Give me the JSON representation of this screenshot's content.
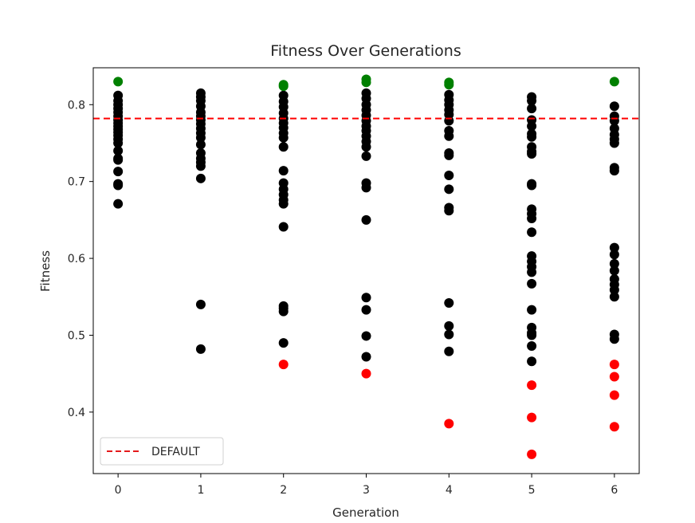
{
  "chart_data": {
    "type": "scatter",
    "title": "Fitness Over Generations",
    "xlabel": "Generation",
    "ylabel": "Fitness",
    "xlim": [
      -0.3,
      6.3
    ],
    "ylim": [
      0.32,
      0.848
    ],
    "xticks": [
      0,
      1,
      2,
      3,
      4,
      5,
      6
    ],
    "yticks": [
      0.4,
      0.5,
      0.6,
      0.7,
      0.8
    ],
    "grid": false,
    "legend": {
      "position": "bottom-left",
      "entries": [
        {
          "label": "DEFAULT",
          "style": "dashed-line",
          "color": "#e41a1c"
        }
      ]
    },
    "reference_line": {
      "name": "DEFAULT",
      "y": 0.782,
      "color": "#ff0000",
      "style": "dashed"
    },
    "colors": {
      "population": "#000000",
      "best": "#008000",
      "worst": "#ff0000"
    },
    "series": [
      {
        "name": "population",
        "color": "#000000",
        "points": [
          [
            0,
            0.812
          ],
          [
            0,
            0.805
          ],
          [
            0,
            0.8
          ],
          [
            0,
            0.795
          ],
          [
            0,
            0.79
          ],
          [
            0,
            0.785
          ],
          [
            0,
            0.78
          ],
          [
            0,
            0.776
          ],
          [
            0,
            0.772
          ],
          [
            0,
            0.768
          ],
          [
            0,
            0.764
          ],
          [
            0,
            0.76
          ],
          [
            0,
            0.755
          ],
          [
            0,
            0.75
          ],
          [
            0,
            0.74
          ],
          [
            0,
            0.73
          ],
          [
            0,
            0.728
          ],
          [
            0,
            0.713
          ],
          [
            0,
            0.697
          ],
          [
            0,
            0.695
          ],
          [
            0,
            0.671
          ],
          [
            1,
            0.815
          ],
          [
            1,
            0.81
          ],
          [
            1,
            0.805
          ],
          [
            1,
            0.798
          ],
          [
            1,
            0.79
          ],
          [
            1,
            0.785
          ],
          [
            1,
            0.78
          ],
          [
            1,
            0.775
          ],
          [
            1,
            0.769
          ],
          [
            1,
            0.763
          ],
          [
            1,
            0.757
          ],
          [
            1,
            0.748
          ],
          [
            1,
            0.737
          ],
          [
            1,
            0.73
          ],
          [
            1,
            0.725
          ],
          [
            1,
            0.72
          ],
          [
            1,
            0.704
          ],
          [
            1,
            0.54
          ],
          [
            1,
            0.482
          ],
          [
            2,
            0.812
          ],
          [
            2,
            0.804
          ],
          [
            2,
            0.797
          ],
          [
            2,
            0.789
          ],
          [
            2,
            0.782
          ],
          [
            2,
            0.776
          ],
          [
            2,
            0.77
          ],
          [
            2,
            0.763
          ],
          [
            2,
            0.757
          ],
          [
            2,
            0.745
          ],
          [
            2,
            0.714
          ],
          [
            2,
            0.698
          ],
          [
            2,
            0.69
          ],
          [
            2,
            0.683
          ],
          [
            2,
            0.676
          ],
          [
            2,
            0.671
          ],
          [
            2,
            0.641
          ],
          [
            2,
            0.538
          ],
          [
            2,
            0.535
          ],
          [
            2,
            0.531
          ],
          [
            2,
            0.49
          ],
          [
            3,
            0.815
          ],
          [
            3,
            0.808
          ],
          [
            3,
            0.8
          ],
          [
            3,
            0.793
          ],
          [
            3,
            0.786
          ],
          [
            3,
            0.779
          ],
          [
            3,
            0.772
          ],
          [
            3,
            0.766
          ],
          [
            3,
            0.759
          ],
          [
            3,
            0.752
          ],
          [
            3,
            0.745
          ],
          [
            3,
            0.733
          ],
          [
            3,
            0.698
          ],
          [
            3,
            0.692
          ],
          [
            3,
            0.65
          ],
          [
            3,
            0.549
          ],
          [
            3,
            0.533
          ],
          [
            3,
            0.499
          ],
          [
            3,
            0.472
          ],
          [
            4,
            0.813
          ],
          [
            4,
            0.806
          ],
          [
            4,
            0.8
          ],
          [
            4,
            0.793
          ],
          [
            4,
            0.787
          ],
          [
            4,
            0.779
          ],
          [
            4,
            0.766
          ],
          [
            4,
            0.759
          ],
          [
            4,
            0.737
          ],
          [
            4,
            0.734
          ],
          [
            4,
            0.708
          ],
          [
            4,
            0.69
          ],
          [
            4,
            0.666
          ],
          [
            4,
            0.662
          ],
          [
            4,
            0.542
          ],
          [
            4,
            0.512
          ],
          [
            4,
            0.501
          ],
          [
            4,
            0.479
          ],
          [
            5,
            0.81
          ],
          [
            5,
            0.805
          ],
          [
            5,
            0.795
          ],
          [
            5,
            0.78
          ],
          [
            5,
            0.772
          ],
          [
            5,
            0.762
          ],
          [
            5,
            0.758
          ],
          [
            5,
            0.745
          ],
          [
            5,
            0.739
          ],
          [
            5,
            0.736
          ],
          [
            5,
            0.697
          ],
          [
            5,
            0.695
          ],
          [
            5,
            0.664
          ],
          [
            5,
            0.658
          ],
          [
            5,
            0.652
          ],
          [
            5,
            0.634
          ],
          [
            5,
            0.603
          ],
          [
            5,
            0.596
          ],
          [
            5,
            0.589
          ],
          [
            5,
            0.582
          ],
          [
            5,
            0.567
          ],
          [
            5,
            0.533
          ],
          [
            5,
            0.51
          ],
          [
            5,
            0.503
          ],
          [
            5,
            0.5
          ],
          [
            5,
            0.486
          ],
          [
            5,
            0.466
          ],
          [
            6,
            0.798
          ],
          [
            6,
            0.785
          ],
          [
            6,
            0.779
          ],
          [
            6,
            0.769
          ],
          [
            6,
            0.761
          ],
          [
            6,
            0.755
          ],
          [
            6,
            0.75
          ],
          [
            6,
            0.718
          ],
          [
            6,
            0.714
          ],
          [
            6,
            0.614
          ],
          [
            6,
            0.605
          ],
          [
            6,
            0.593
          ],
          [
            6,
            0.584
          ],
          [
            6,
            0.573
          ],
          [
            6,
            0.566
          ],
          [
            6,
            0.559
          ],
          [
            6,
            0.55
          ],
          [
            6,
            0.501
          ],
          [
            6,
            0.495
          ]
        ]
      },
      {
        "name": "best",
        "color": "#008000",
        "points": [
          [
            0,
            0.83
          ],
          [
            2,
            0.826
          ],
          [
            2,
            0.824
          ],
          [
            3,
            0.833
          ],
          [
            3,
            0.829
          ],
          [
            4,
            0.829
          ],
          [
            4,
            0.826
          ],
          [
            6,
            0.83
          ]
        ]
      },
      {
        "name": "worst",
        "color": "#ff0000",
        "points": [
          [
            2,
            0.462
          ],
          [
            3,
            0.45
          ],
          [
            4,
            0.385
          ],
          [
            5,
            0.435
          ],
          [
            5,
            0.393
          ],
          [
            5,
            0.345
          ],
          [
            6,
            0.462
          ],
          [
            6,
            0.446
          ],
          [
            6,
            0.422
          ],
          [
            6,
            0.381
          ]
        ]
      }
    ]
  }
}
